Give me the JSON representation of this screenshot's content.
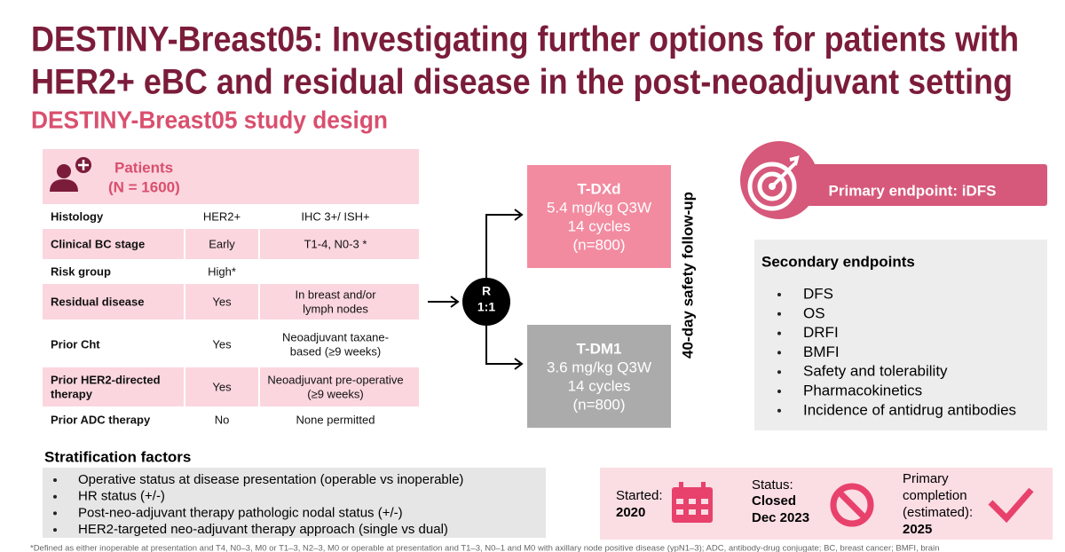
{
  "header": {
    "title_lines": [
      "DESTINY-Breast05: Investigating further options for patients with",
      "HER2+ eBC and residual disease in the post-neoadjuvant setting"
    ],
    "subtitle": "DESTINY-Breast05 study design"
  },
  "patients": {
    "label": "Patients",
    "n": "(N = 1600)"
  },
  "table": {
    "rows": [
      [
        [
          "Histology"
        ],
        [
          "HER2+"
        ],
        [
          "IHC 3+/ ISH+"
        ]
      ],
      [
        [
          "Clinical BC stage"
        ],
        [
          "Early"
        ],
        [
          "T1-4, N0-3 *"
        ]
      ],
      [
        [
          "Risk group"
        ],
        [
          "High*"
        ],
        []
      ],
      [
        [
          "Residual disease"
        ],
        [
          "Yes"
        ],
        [
          "In breast and/or",
          "lymph nodes"
        ]
      ],
      [
        [
          "Prior Cht"
        ],
        [
          "Yes"
        ],
        [
          "Neoadjuvant taxane-",
          "based (≥9 weeks)"
        ]
      ],
      [
        [
          "Prior HER2-directed",
          "therapy"
        ],
        [
          "Yes"
        ],
        [
          "Neoadjuvant pre-operative",
          "(≥9 weeks)"
        ]
      ],
      [
        [
          "Prior ADC therapy"
        ],
        [
          "No"
        ],
        [
          "None permitted"
        ]
      ]
    ]
  },
  "randomization": {
    "lines": [
      "R",
      "1:1"
    ]
  },
  "arms": [
    {
      "lines": [
        "T-DXd",
        "5.4 mg/kg Q3W",
        "14 cycles",
        "(n=800)"
      ]
    },
    {
      "lines": [
        "T-DM1",
        "3.6 mg/kg Q3W",
        "14 cycles",
        "(n=800)"
      ]
    }
  ],
  "follow_up": "40-day safety follow-up",
  "primary_endpoint": "Primary endpoint: iDFS",
  "secondary_endpoints": {
    "title": "Secondary endpoints",
    "items": [
      "DFS",
      "OS",
      "DRFI",
      "BMFI",
      "Safety and tolerability",
      "Pharmacokinetics",
      "Incidence of antidrug antibodies"
    ]
  },
  "stratification": {
    "title": "Stratification factors",
    "items": [
      "Operative status at disease presentation (operable vs inoperable)",
      "HR status (+/-)",
      "Post-neo-adjuvant therapy pathologic nodal status (+/-)",
      "HER2-targeted neo-adjuvant therapy approach (single vs dual)"
    ]
  },
  "status": {
    "started": [
      "Started:",
      "2020"
    ],
    "status": [
      "Status:",
      "Closed",
      "Dec 2023"
    ],
    "completion": [
      "Primary",
      "completion",
      "(estimated):",
      "2025"
    ]
  },
  "footnote": "*Defined as either inoperable at presentation and T4, N0–3, M0 or T1–3, N2–3, M0 or operable at presentation and T1–3, N0–1 and M0 with axillary node positive disease (ypN1–3); ADC, antibody-drug conjugate; BC, breast cancer; BMFI, brain"
}
